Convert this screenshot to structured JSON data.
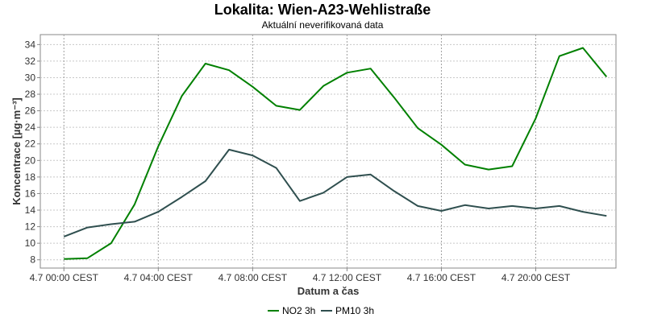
{
  "chart_data": {
    "type": "line",
    "title": "Lokalita: Wien-A23-Wehlistraße",
    "subtitle": "Aktuální neverifikovaná data",
    "xlabel": "Datum a čas",
    "ylabel": "Koncentrace [µg·m⁻³]",
    "x_tick_labels": [
      "4.7 00:00 CEST",
      "4.7 04:00 CEST",
      "4.7 08:00 CEST",
      "4.7 12:00 CEST",
      "4.7 16:00 CEST",
      "4.7 20:00 CEST"
    ],
    "x_tick_hours": [
      0,
      4,
      8,
      12,
      16,
      20
    ],
    "xlim": [
      -1,
      23.4
    ],
    "y_ticks": [
      8,
      10,
      12,
      14,
      16,
      18,
      20,
      22,
      24,
      26,
      28,
      30,
      32,
      34
    ],
    "ylim": [
      7,
      35.2
    ],
    "x": [
      0,
      1,
      2,
      3,
      4,
      5,
      6,
      7,
      8,
      9,
      10,
      11,
      12,
      13,
      14,
      15,
      16,
      17,
      18,
      19,
      20,
      21,
      22,
      23
    ],
    "series": [
      {
        "name": "NO2 3h",
        "color": "#008000",
        "values": [
          8.1,
          8.2,
          10.0,
          14.7,
          21.7,
          27.8,
          31.7,
          30.9,
          28.9,
          26.6,
          26.1,
          29.0,
          30.6,
          31.1,
          27.6,
          23.9,
          21.9,
          19.5,
          18.9,
          19.3,
          25.1,
          32.6,
          33.6,
          30.1
        ]
      },
      {
        "name": "PM10 3h",
        "color": "#2f4f4f",
        "values": [
          10.8,
          11.9,
          12.3,
          12.6,
          13.8,
          15.6,
          17.5,
          21.3,
          20.6,
          19.1,
          15.1,
          16.1,
          18.0,
          18.3,
          16.3,
          14.5,
          13.9,
          14.6,
          14.2,
          14.5,
          14.2,
          14.5,
          13.8,
          13.3
        ]
      }
    ],
    "grid": true,
    "legend_position": "bottom"
  }
}
